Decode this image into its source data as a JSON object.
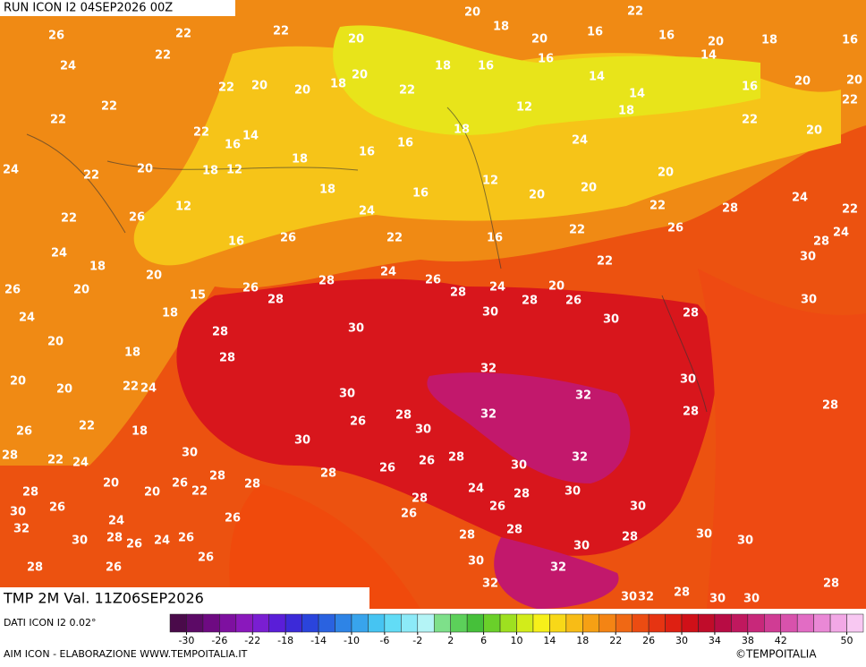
{
  "header": {
    "run": "RUN ICON I2 04SEP2026 00Z",
    "field": "TMP 2M Val. 11Z06SEP2026",
    "source": "DATI ICON I2 0.02°",
    "credit": "AIM ICON - ELABORAZIONE WWW.TEMPOITALIA.IT",
    "copyright": "©TEMPOITALIA"
  },
  "map_labels": [
    "26",
    "22",
    "22",
    "20",
    "20",
    "18",
    "20",
    "16",
    "22",
    "16",
    "20",
    "18",
    "16",
    "24",
    "22",
    "22",
    "20",
    "20",
    "18",
    "20",
    "22",
    "18",
    "16",
    "16",
    "14",
    "14",
    "14",
    "16",
    "20",
    "20",
    "22",
    "22",
    "22",
    "16",
    "14",
    "16",
    "16",
    "18",
    "12",
    "24",
    "18",
    "20",
    "22",
    "20",
    "22",
    "24",
    "22",
    "20",
    "18",
    "12",
    "18",
    "18",
    "24",
    "16",
    "12",
    "20",
    "20",
    "22",
    "28",
    "24",
    "22",
    "22",
    "26",
    "12",
    "16",
    "26",
    "22",
    "16",
    "22",
    "26",
    "28",
    "24",
    "24",
    "18",
    "20",
    "15",
    "26",
    "28",
    "28",
    "24",
    "26",
    "28",
    "24",
    "28",
    "20",
    "26",
    "22",
    "30",
    "30",
    "26",
    "24",
    "20",
    "18",
    "28",
    "30",
    "30",
    "30",
    "28",
    "20",
    "20",
    "18",
    "28",
    "32",
    "30",
    "30",
    "32",
    "28",
    "20",
    "22",
    "24",
    "26",
    "28",
    "32",
    "30",
    "28",
    "26",
    "22",
    "18",
    "30",
    "30",
    "28",
    "22",
    "24",
    "32",
    "30",
    "28",
    "26",
    "26",
    "28",
    "28",
    "28",
    "28",
    "30",
    "26",
    "20",
    "20",
    "26",
    "22",
    "24",
    "28",
    "30",
    "28",
    "26",
    "30",
    "26",
    "26",
    "24",
    "32",
    "30",
    "28",
    "26",
    "24",
    "26",
    "28",
    "28",
    "28",
    "30",
    "30",
    "30",
    "26",
    "30",
    "32",
    "28",
    "26",
    "32",
    "30",
    "32",
    "28",
    "30",
    "30",
    "28"
  ],
  "legend": {
    "xlim": [
      -32,
      52
    ],
    "xticks": [
      -30,
      -26,
      -22,
      -18,
      -14,
      -10,
      -6,
      -2,
      2,
      6,
      10,
      14,
      18,
      22,
      26,
      30,
      34,
      38,
      42,
      50
    ],
    "colors": [
      "#4a0a4a",
      "#5c0a66",
      "#6e0a82",
      "#7e10a0",
      "#8a18bc",
      "#7a1ed2",
      "#5a1ed8",
      "#3c2ad8",
      "#2a44dc",
      "#2a62e0",
      "#2e84e6",
      "#38a4ec",
      "#46c4f2",
      "#62dcf6",
      "#8ceaf8",
      "#b4f4f6",
      "#7ee08a",
      "#5cd05a",
      "#46c03a",
      "#6ad02a",
      "#9ee020",
      "#d2ec1a",
      "#f6f01a",
      "#f8d818",
      "#f8bc16",
      "#f6a014",
      "#f48414",
      "#f06814",
      "#ec4c12",
      "#e63412",
      "#de2012",
      "#d01018",
      "#c00c2a",
      "#b80c44",
      "#c0185e",
      "#c8287a",
      "#d03c94",
      "#d852ac",
      "#e26cc4",
      "#ea88d6",
      "#f2a8e6",
      "#f8c8f2"
    ]
  }
}
